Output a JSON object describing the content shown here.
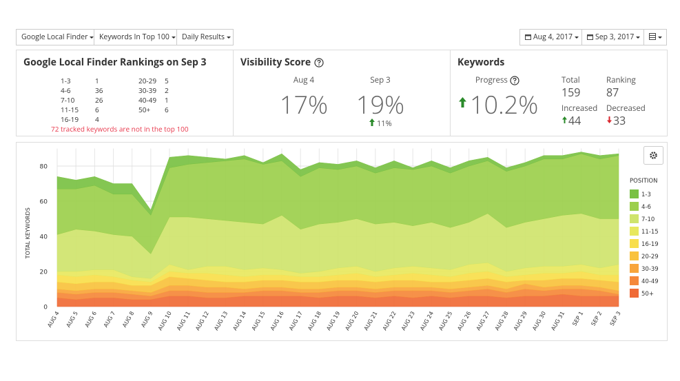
{
  "toolbar": {
    "filters": [
      "Google Local Finder",
      "Keywords In Top 100",
      "Daily Results"
    ],
    "start_date": "Aug 4, 2017",
    "end_date": "Sep 3, 2017"
  },
  "rankings_panel": {
    "title": "Google Local Finder Rankings on Sep 3",
    "rows": [
      {
        "range": "1-3",
        "count": 1
      },
      {
        "range": "4-6",
        "count": 36
      },
      {
        "range": "7-10",
        "count": 26
      },
      {
        "range": "11-15",
        "count": 6
      },
      {
        "range": "16-19",
        "count": 4
      },
      {
        "range": "20-29",
        "count": 5
      },
      {
        "range": "30-39",
        "count": 2
      },
      {
        "range": "40-49",
        "count": 1
      },
      {
        "range": "50+",
        "count": 6
      }
    ],
    "note": "72 tracked keywords are not in the top 100"
  },
  "visibility_panel": {
    "title": "Visibility Score",
    "columns": [
      {
        "label": "Aug 4",
        "value": "17%"
      },
      {
        "label": "Sep 3",
        "value": "19%"
      }
    ],
    "change": "11%"
  },
  "keywords_panel": {
    "title": "Keywords",
    "progress_label": "Progress",
    "progress": "10.2%",
    "total_label": "Total",
    "total": 159,
    "ranking_label": "Ranking",
    "ranking": 87,
    "increased_label": "Increased",
    "increased": 44,
    "decreased_label": "Decreased",
    "decreased": 33
  },
  "chart_data": {
    "type": "area",
    "stacked": true,
    "y_label": "TOTAL KEYWORDS",
    "legend_title": "POSITION",
    "legend": "right",
    "grid": true,
    "categories": [
      "AUG 4",
      "AUG 5",
      "AUG 6",
      "AUG 7",
      "AUG 8",
      "AUG 9",
      "AUG 10",
      "AUG 11",
      "AUG 12",
      "AUG 13",
      "AUG 14",
      "AUG 15",
      "AUG 16",
      "AUG 17",
      "AUG 18",
      "AUG 19",
      "AUG 20",
      "AUG 21",
      "AUG 22",
      "AUG 23",
      "AUG 24",
      "AUG 25",
      "AUG 26",
      "AUG 27",
      "AUG 28",
      "AUG 29",
      "AUG 30",
      "AUG 31",
      "SEP 1",
      "SEP 2",
      "SEP 3"
    ],
    "series": [
      {
        "name": "1-3",
        "color": "#79c143",
        "values": [
          7,
          5,
          5,
          6,
          6,
          3,
          6,
          5,
          3,
          1,
          2,
          1,
          4,
          4,
          3,
          3,
          3,
          3,
          4,
          1,
          3,
          3,
          3,
          2,
          2,
          2,
          2,
          2,
          1,
          2,
          1
        ]
      },
      {
        "name": "4-6",
        "color": "#9ccf4c",
        "values": [
          26,
          23,
          26,
          23,
          24,
          22,
          28,
          30,
          32,
          34,
          36,
          34,
          31,
          30,
          32,
          30,
          30,
          29,
          31,
          32,
          32,
          31,
          32,
          30,
          32,
          32,
          34,
          32,
          34,
          34,
          36
        ]
      },
      {
        "name": "7-10",
        "color": "#cfe46c",
        "values": [
          21,
          24,
          22,
          20,
          23,
          14,
          27,
          30,
          27,
          26,
          27,
          25,
          31,
          25,
          27,
          26,
          27,
          27,
          26,
          23,
          26,
          24,
          24,
          28,
          25,
          26,
          27,
          29,
          29,
          28,
          26
        ]
      },
      {
        "name": "11-15",
        "color": "#e8e85e",
        "values": [
          2,
          3,
          3,
          4,
          2,
          2,
          4,
          2,
          4,
          5,
          4,
          4,
          3,
          2,
          3,
          4,
          4,
          3,
          4,
          4,
          4,
          4,
          5,
          5,
          3,
          4,
          4,
          4,
          4,
          4,
          6
        ]
      },
      {
        "name": "16-19",
        "color": "#f8de4b",
        "values": [
          4,
          4,
          4,
          3,
          3,
          2,
          3,
          3,
          4,
          4,
          3,
          3,
          3,
          3,
          3,
          3,
          4,
          3,
          3,
          4,
          4,
          3,
          4,
          4,
          3,
          3,
          4,
          3,
          4,
          3,
          4
        ]
      },
      {
        "name": "20-29",
        "color": "#f9c23d",
        "values": [
          4,
          4,
          4,
          4,
          3,
          4,
          5,
          4,
          4,
          3,
          4,
          4,
          4,
          4,
          4,
          4,
          4,
          4,
          4,
          4,
          3,
          4,
          4,
          4,
          4,
          2,
          4,
          4,
          4,
          4,
          5
        ]
      },
      {
        "name": "30-39",
        "color": "#f8a53b",
        "values": [
          2,
          2,
          2,
          2,
          2,
          2,
          3,
          3,
          3,
          3,
          2,
          2,
          2,
          2,
          2,
          2,
          2,
          2,
          2,
          2,
          2,
          2,
          2,
          2,
          2,
          3,
          2,
          2,
          2,
          2,
          2
        ]
      },
      {
        "name": "40-49",
        "color": "#f5883a",
        "values": [
          3,
          3,
          3,
          3,
          3,
          2,
          3,
          3,
          3,
          3,
          2,
          3,
          3,
          2,
          3,
          3,
          3,
          3,
          3,
          4,
          3,
          3,
          3,
          4,
          3,
          4,
          3,
          3,
          4,
          3,
          1
        ]
      },
      {
        "name": "50+",
        "color": "#f06b36",
        "values": [
          5,
          4,
          5,
          5,
          4,
          4,
          6,
          6,
          5,
          5,
          6,
          6,
          6,
          6,
          5,
          6,
          6,
          5,
          6,
          5,
          6,
          5,
          6,
          6,
          5,
          6,
          6,
          7,
          6,
          6,
          6
        ]
      }
    ],
    "ylim": [
      0,
      90
    ],
    "yticks": [
      0,
      20,
      40,
      60,
      80
    ]
  }
}
